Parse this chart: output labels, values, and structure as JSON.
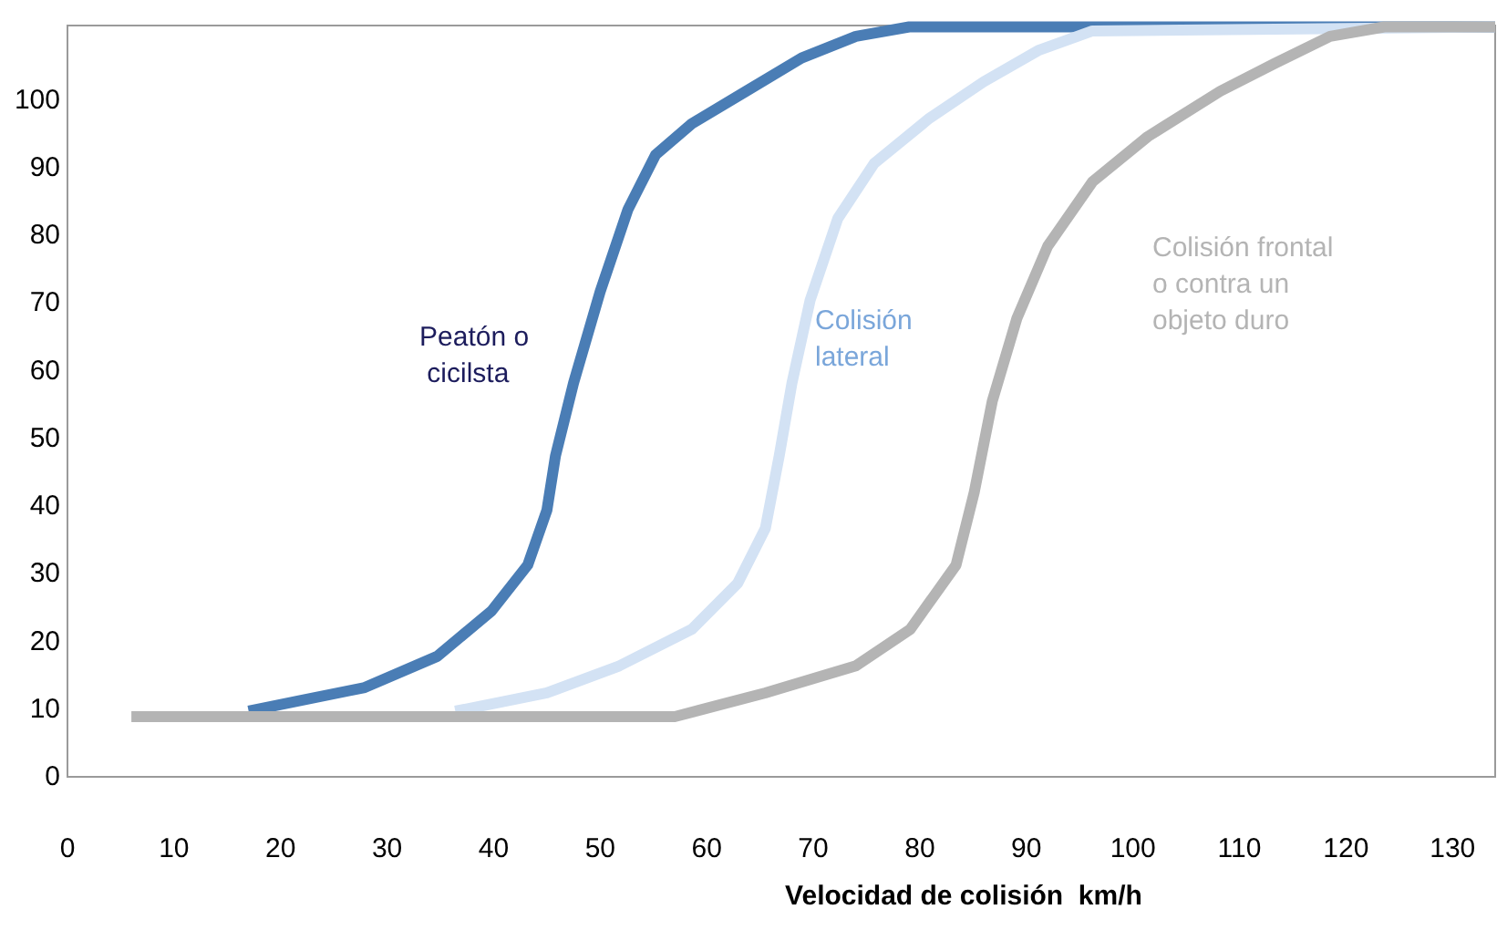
{
  "chart_data": {
    "type": "line",
    "xlabel": "Velocidad de colisión  km/h",
    "xlim": [
      0,
      134
    ],
    "xticks": [
      0,
      10,
      20,
      30,
      40,
      50,
      60,
      70,
      80,
      90,
      100,
      110,
      120,
      130
    ],
    "ylim": [
      0,
      111
    ],
    "yticks": [
      0,
      10,
      20,
      30,
      40,
      50,
      60,
      70,
      80,
      90,
      100
    ],
    "grid": false,
    "legend": false,
    "marker": "none",
    "line_style": "solid",
    "series": [
      {
        "name": "Peatón o cicilsta",
        "color": "#4a7db5",
        "x": [
          17,
          21,
          27.9,
          34.7,
          39.8,
          43.2,
          45,
          45.8,
          47.5,
          50,
          52.6,
          55.2,
          58.6,
          63.7,
          68.9,
          74,
          79,
          134
        ],
        "values": [
          9.7,
          11,
          13.2,
          17.8,
          24.5,
          31.3,
          39.4,
          47.4,
          58.2,
          71.7,
          83.8,
          91.9,
          96.5,
          101.3,
          106.2,
          109.4,
          110.8,
          110.8
        ]
      },
      {
        "name": "Colisión lateral",
        "color": "#d3e2f4",
        "x": [
          36.4,
          45,
          51.8,
          58.6,
          62.9,
          65.5,
          66.8,
          68,
          69.7,
          72.3,
          75.7,
          80.9,
          86,
          91.1,
          96.2,
          134
        ],
        "values": [
          9.7,
          12.4,
          16.4,
          21.8,
          28.6,
          36.7,
          47.4,
          58.2,
          70.4,
          82.5,
          90.6,
          97.3,
          102.7,
          107.3,
          110.2,
          110.8
        ]
      },
      {
        "name": "Colisión frontal o contra un objeto duro",
        "color": "#b4b4b4",
        "x": [
          6,
          57,
          65.5,
          74,
          79.1,
          83.4,
          85.1,
          86.8,
          89.1,
          92,
          96.2,
          101.4,
          108.2,
          113.3,
          118.5,
          123.6,
          134
        ],
        "values": [
          8.9,
          8.9,
          12.4,
          16.4,
          21.8,
          31.3,
          42,
          55.5,
          67.7,
          78.4,
          87.9,
          94.6,
          101.3,
          105.4,
          109.4,
          110.8,
          110.8
        ]
      }
    ]
  }
}
